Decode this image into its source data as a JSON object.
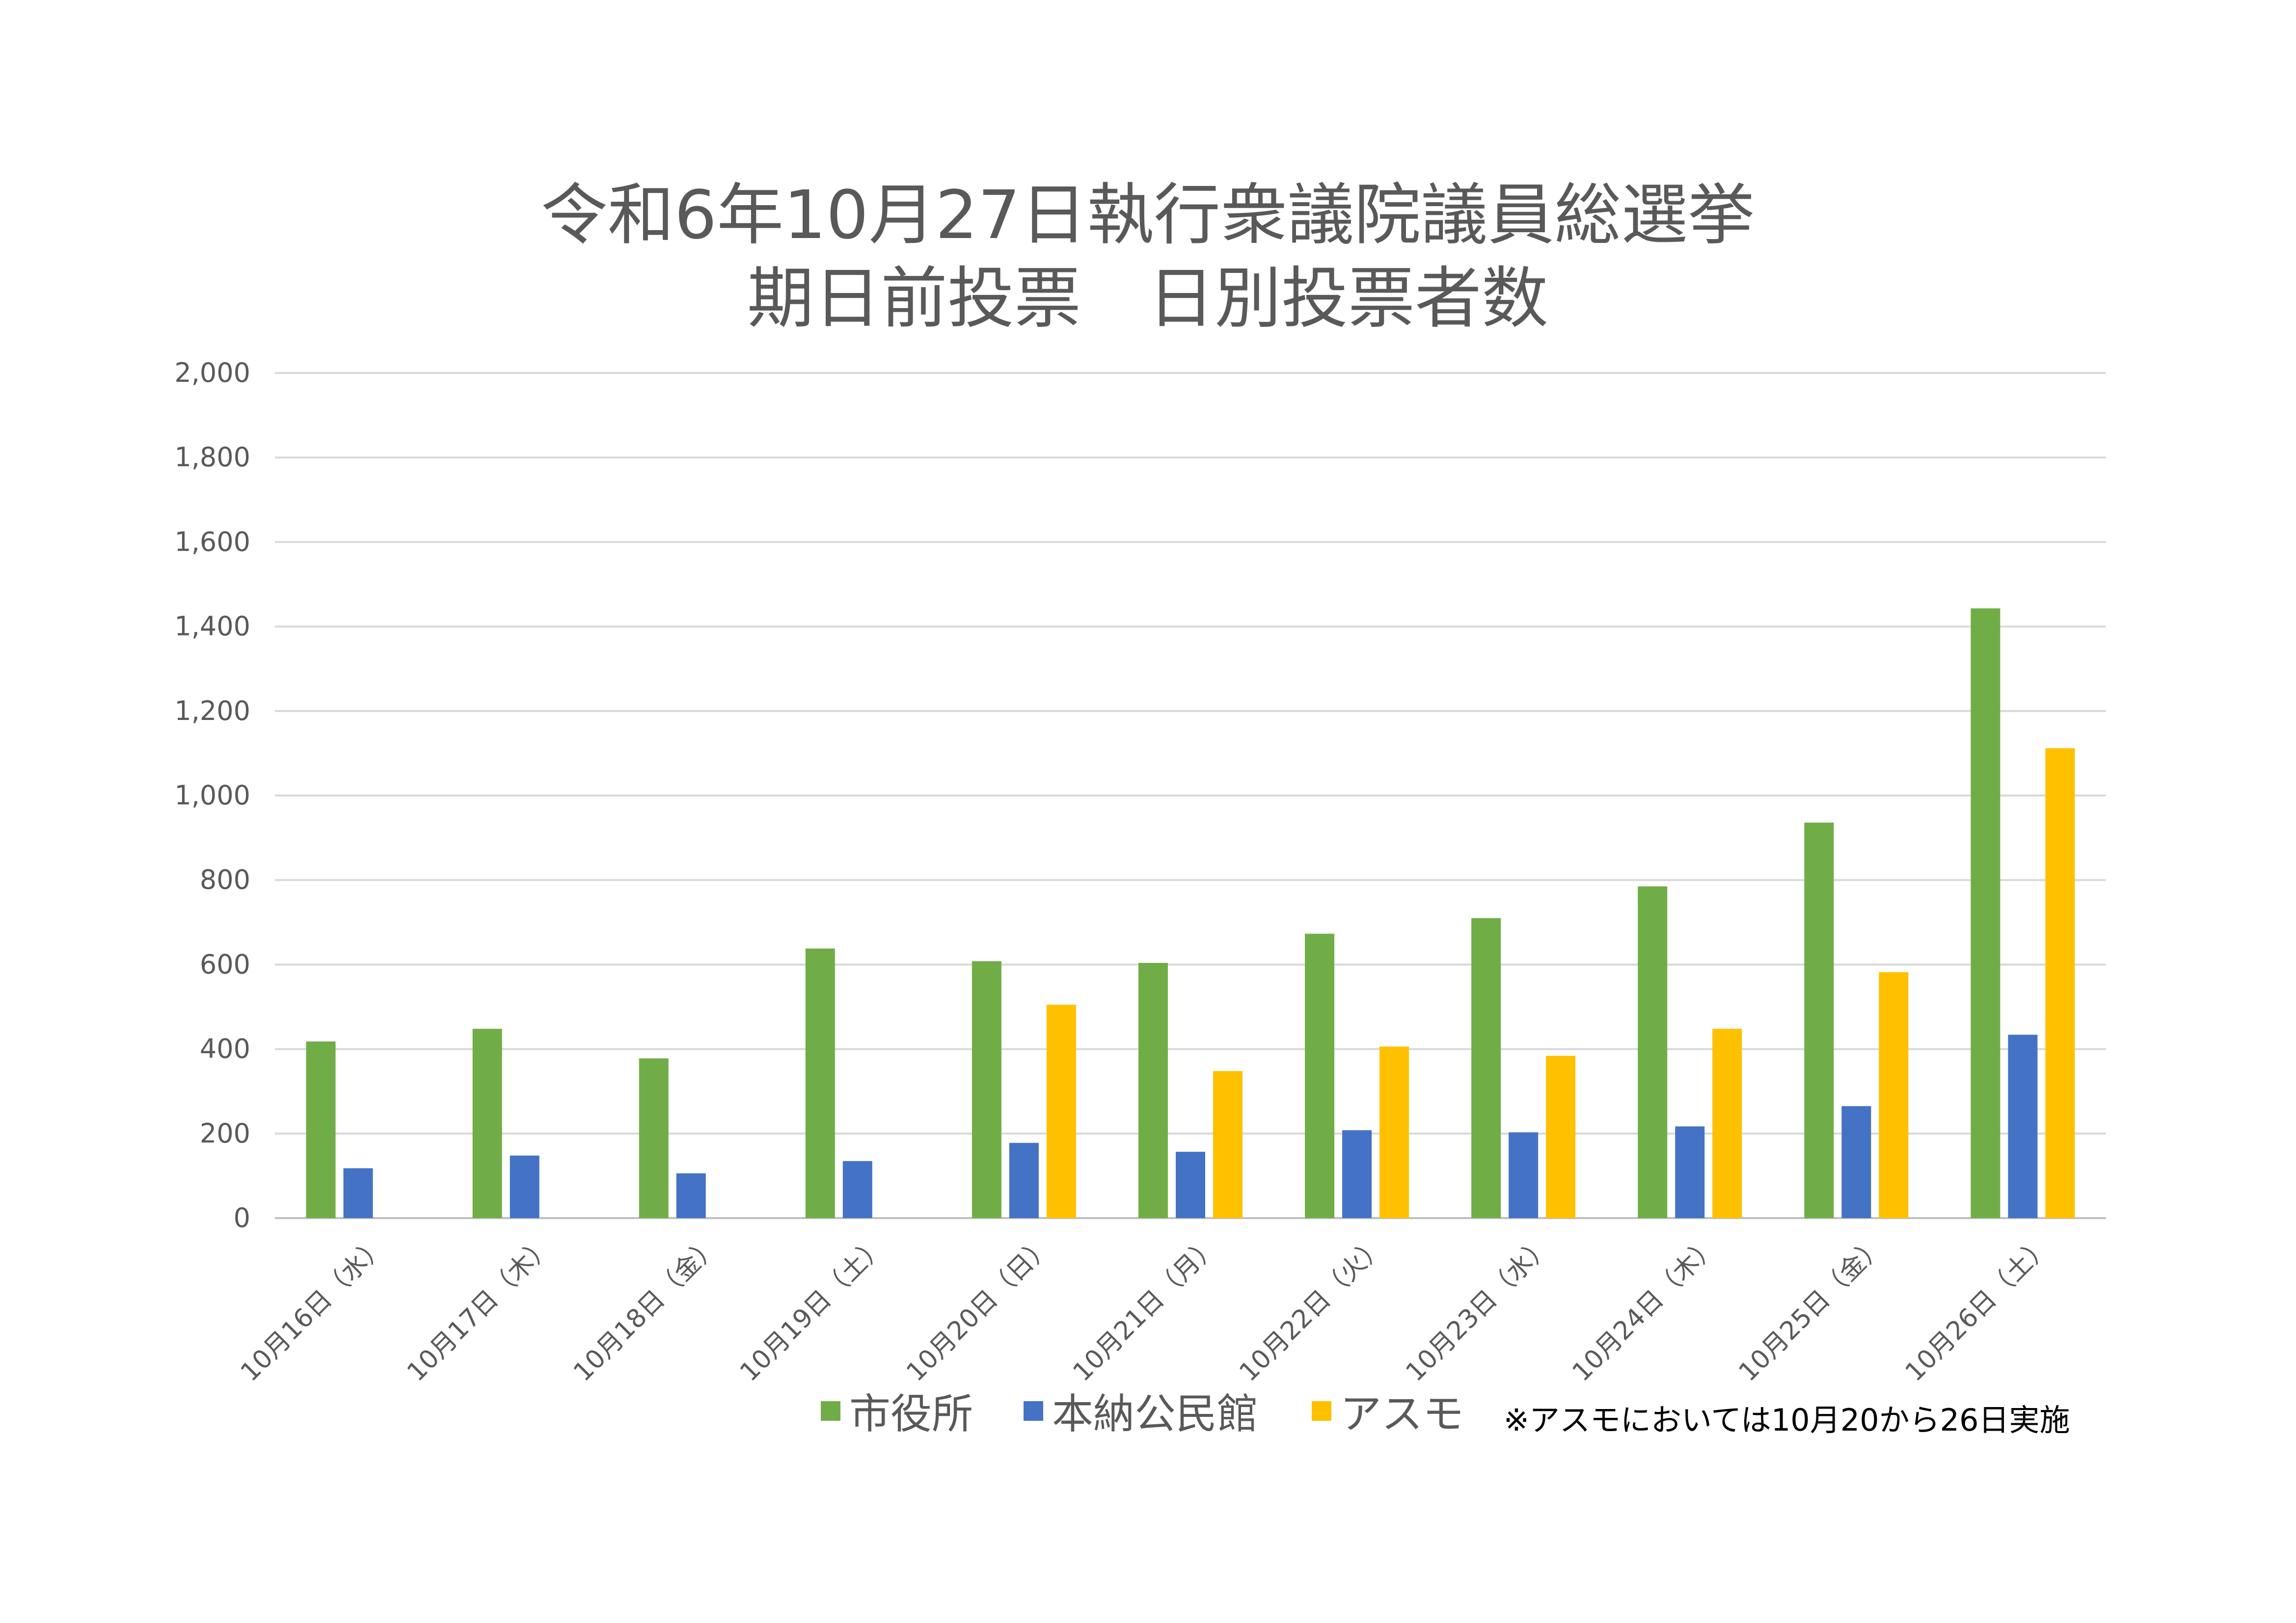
{
  "chart_data": {
    "type": "bar",
    "title": [
      "令和6年10月27日執行衆議院議員総選挙",
      "期日前投票　日別投票者数"
    ],
    "categories": [
      "10月16日（水）",
      "10月17日（木）",
      "10月18日（金）",
      "10月19日（土）",
      "10月20日（日）",
      "10月21日（月）",
      "10月22日（火）",
      "10月23日（水）",
      "10月24日（木）",
      "10月25日（金）",
      "10月26日（土）"
    ],
    "series": [
      {
        "name": "市役所",
        "color": "#70AD47",
        "values": [
          418,
          448,
          378,
          638,
          608,
          604,
          673,
          710,
          785,
          936,
          1443
        ]
      },
      {
        "name": "本納公民館",
        "color": "#4472C4",
        "values": [
          118,
          148,
          106,
          135,
          178,
          157,
          208,
          203,
          217,
          265,
          434
        ]
      },
      {
        "name": "アスモ",
        "color": "#FFC000",
        "values": [
          null,
          null,
          null,
          null,
          505,
          348,
          406,
          384,
          448,
          582,
          1112
        ]
      }
    ],
    "ylim": [
      0,
      2000
    ],
    "yticks": [
      0,
      200,
      400,
      600,
      800,
      1000,
      1200,
      1400,
      1600,
      1800,
      2000
    ],
    "ytick_labels": [
      "0",
      "200",
      "400",
      "600",
      "800",
      "1,000",
      "1,200",
      "1,400",
      "1,600",
      "1,800",
      "2,000"
    ],
    "grid": true,
    "legend": "bottom",
    "note": "※アスモにおいては10月20から26日実施"
  }
}
